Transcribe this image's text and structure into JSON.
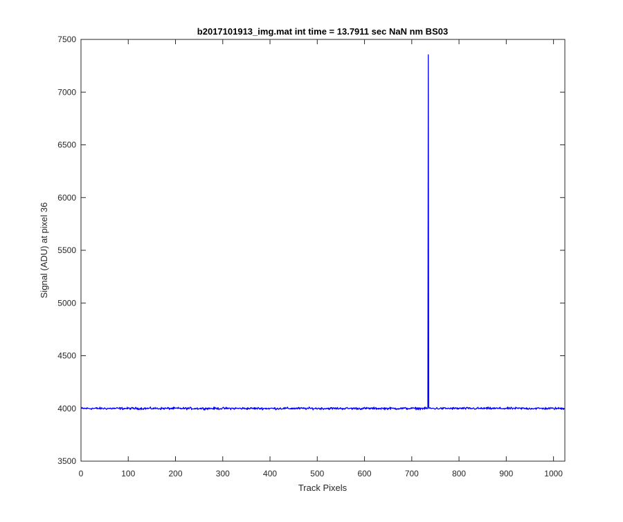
{
  "chart_data": {
    "type": "line",
    "title": "b2017101913_img.mat int time = 13.7911 sec  NaN nm BS03",
    "xlabel": "Track Pixels",
    "ylabel": "Signal (ADU) at pixel 36",
    "xlim": [
      0,
      1024
    ],
    "ylim": [
      3500,
      7500
    ],
    "xticks": [
      0,
      100,
      200,
      300,
      400,
      500,
      600,
      700,
      800,
      900,
      1000
    ],
    "yticks": [
      3500,
      4000,
      4500,
      5000,
      5500,
      6000,
      6500,
      7000,
      7500
    ],
    "grid": false,
    "legend": "none",
    "line_color": "#0000ff",
    "series": [
      {
        "x_start": 1,
        "x_step": 1,
        "baseline": 4000,
        "noise_amplitude": 12,
        "spike": {
          "x": 735,
          "y": 7355
        },
        "spike_shoulder": {
          "x": 736,
          "y": 4010
        }
      }
    ]
  }
}
